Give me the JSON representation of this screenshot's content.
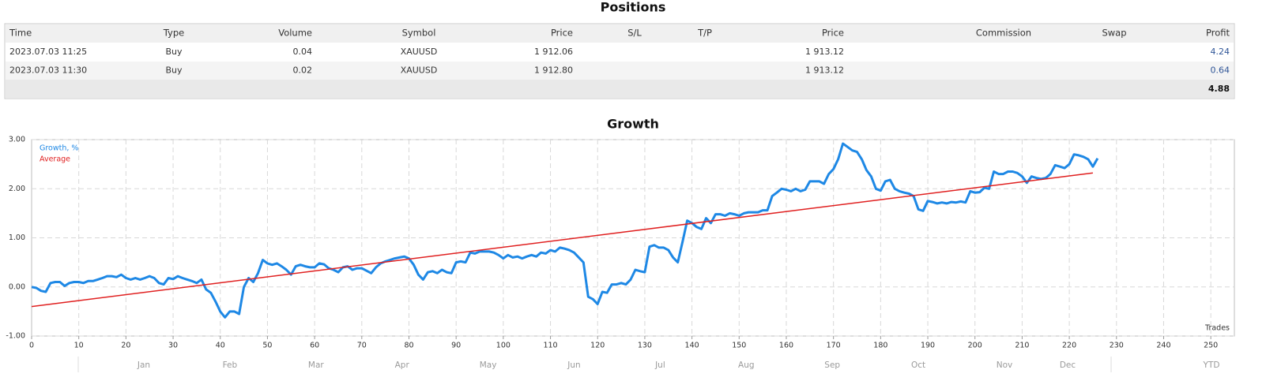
{
  "positions": {
    "title": "Positions",
    "columns": [
      "Time",
      "Type",
      "Volume",
      "Symbol",
      "Price",
      "S/L",
      "T/P",
      "Price",
      "Commission",
      "Swap",
      "Profit"
    ],
    "rows": [
      [
        "2023.07.03 11:25",
        "Buy",
        "0.04",
        "XAUUSD",
        "1 912.06",
        null,
        null,
        "1 913.12",
        null,
        null,
        "4.24"
      ],
      [
        "2023.07.03 11:30",
        "Buy",
        "0.02",
        "XAUUSD",
        "1 912.80",
        null,
        null,
        "1 913.12",
        null,
        null,
        "0.64"
      ]
    ],
    "total": "4.88"
  },
  "chart_data": {
    "type": "line",
    "title": "Growth",
    "xlabel": "Trades",
    "xlim": [
      0,
      255
    ],
    "xticks": [
      0,
      10,
      20,
      30,
      40,
      50,
      60,
      70,
      80,
      90,
      100,
      110,
      120,
      130,
      140,
      150,
      160,
      170,
      180,
      190,
      200,
      210,
      220,
      230,
      240,
      250
    ],
    "ylim": [
      -1,
      3
    ],
    "yticks": [
      {
        "value": -1,
        "label": "-1.00"
      },
      {
        "value": 0,
        "label": "0.00"
      },
      {
        "value": 1,
        "label": "1.00"
      },
      {
        "value": 2,
        "label": "2.00"
      },
      {
        "value": 3,
        "label": "3.00"
      }
    ],
    "grid": true,
    "legend": "upper-left",
    "period_labels": [
      "Jan",
      "Feb",
      "Mar",
      "Apr",
      "May",
      "Jun",
      "Jul",
      "Aug",
      "Sep",
      "Oct",
      "Nov",
      "Dec"
    ],
    "period_total": "YTD",
    "series": [
      {
        "name": "Growth, %",
        "color": "#1e88e5",
        "x": [
          0,
          1,
          2,
          3,
          4,
          5,
          6,
          7,
          8,
          9,
          10,
          11,
          12,
          13,
          14,
          15,
          16,
          17,
          18,
          19,
          20,
          21,
          22,
          23,
          24,
          25,
          26,
          27,
          28,
          29,
          30,
          31,
          32,
          33,
          34,
          35,
          36,
          37,
          38,
          39,
          40,
          41,
          42,
          43,
          44,
          45,
          46,
          47,
          48,
          49,
          50,
          51,
          52,
          53,
          54,
          55,
          56,
          57,
          58,
          59,
          60,
          61,
          62,
          63,
          64,
          65,
          66,
          67,
          68,
          69,
          70,
          71,
          72,
          73,
          74,
          75,
          76,
          77,
          78,
          79,
          80,
          81,
          82,
          83,
          84,
          85,
          86,
          87,
          88,
          89,
          90,
          91,
          92,
          93,
          94,
          95,
          96,
          97,
          98,
          99,
          100,
          101,
          102,
          103,
          104,
          105,
          106,
          107,
          108,
          109,
          110,
          111,
          112,
          113,
          114,
          115,
          116,
          117,
          118,
          119,
          120,
          121,
          122,
          123,
          124,
          125,
          126,
          127,
          128,
          129,
          130,
          131,
          132,
          133,
          134,
          135,
          136,
          137,
          138,
          139,
          140,
          141,
          142,
          143,
          144,
          145,
          146,
          147,
          148,
          149,
          150,
          151,
          152,
          153,
          154,
          155,
          156,
          157,
          158,
          159,
          160,
          161,
          162,
          163,
          164,
          165,
          166,
          167,
          168,
          169,
          170,
          171,
          172,
          173,
          174,
          175,
          176,
          177,
          178,
          179,
          180,
          181,
          182,
          183,
          184,
          185,
          186,
          187,
          188,
          189,
          190,
          191,
          192,
          193,
          194,
          195,
          196,
          197,
          198,
          199,
          200,
          201,
          202,
          203,
          204,
          205,
          206,
          207,
          208,
          209,
          210,
          211,
          212,
          213,
          214,
          215,
          216,
          217,
          218,
          219,
          220,
          221,
          222,
          223,
          224,
          225,
          226
        ],
        "values": [
          0.0,
          -0.02,
          -0.08,
          -0.1,
          0.08,
          0.1,
          0.1,
          0.02,
          0.08,
          0.1,
          0.1,
          0.08,
          0.12,
          0.12,
          0.15,
          0.18,
          0.22,
          0.22,
          0.2,
          0.25,
          0.18,
          0.15,
          0.18,
          0.15,
          0.18,
          0.22,
          0.18,
          0.08,
          0.05,
          0.18,
          0.16,
          0.22,
          0.18,
          0.15,
          0.12,
          0.08,
          0.15,
          -0.05,
          -0.12,
          -0.3,
          -0.5,
          -0.62,
          -0.5,
          -0.5,
          -0.55,
          0.0,
          0.18,
          0.1,
          0.28,
          0.55,
          0.48,
          0.45,
          0.48,
          0.42,
          0.35,
          0.25,
          0.42,
          0.45,
          0.42,
          0.4,
          0.4,
          0.48,
          0.46,
          0.38,
          0.35,
          0.3,
          0.4,
          0.42,
          0.35,
          0.38,
          0.38,
          0.33,
          0.28,
          0.4,
          0.48,
          0.52,
          0.55,
          0.58,
          0.6,
          0.62,
          0.58,
          0.45,
          0.25,
          0.15,
          0.3,
          0.32,
          0.28,
          0.35,
          0.3,
          0.28,
          0.5,
          0.52,
          0.5,
          0.7,
          0.68,
          0.72,
          0.72,
          0.72,
          0.7,
          0.65,
          0.58,
          0.65,
          0.6,
          0.62,
          0.58,
          0.62,
          0.65,
          0.62,
          0.7,
          0.68,
          0.75,
          0.72,
          0.8,
          0.78,
          0.75,
          0.7,
          0.6,
          0.5,
          -0.2,
          -0.25,
          -0.35,
          -0.1,
          -0.12,
          0.05,
          0.05,
          0.08,
          0.05,
          0.15,
          0.35,
          0.32,
          0.3,
          0.82,
          0.85,
          0.8,
          0.8,
          0.75,
          0.6,
          0.5,
          0.92,
          1.35,
          1.3,
          1.22,
          1.18,
          1.4,
          1.3,
          1.48,
          1.48,
          1.45,
          1.5,
          1.48,
          1.45,
          1.5,
          1.52,
          1.52,
          1.52,
          1.56,
          1.56,
          1.85,
          1.92,
          2.0,
          1.98,
          1.95,
          2.0,
          1.95,
          1.98,
          2.15,
          2.15,
          2.15,
          2.1,
          2.3,
          2.4,
          2.6,
          2.92,
          2.85,
          2.78,
          2.75,
          2.6,
          2.38,
          2.25,
          2.0,
          1.96,
          2.15,
          2.18,
          2.0,
          1.95,
          1.92,
          1.9,
          1.85,
          1.58,
          1.55,
          1.75,
          1.73,
          1.7,
          1.72,
          1.7,
          1.73,
          1.72,
          1.74,
          1.72,
          1.95,
          1.92,
          1.93,
          2.02,
          2.0,
          2.35,
          2.3,
          2.3,
          2.35,
          2.35,
          2.32,
          2.25,
          2.12,
          2.25,
          2.22,
          2.2,
          2.22,
          2.3,
          2.48,
          2.45,
          2.42,
          2.5,
          2.7,
          2.68,
          2.65,
          2.6,
          2.45,
          2.62
        ]
      },
      {
        "name": "Average",
        "color": "#e02020",
        "x": [
          0,
          225
        ],
        "values": [
          -0.4,
          2.32
        ]
      }
    ]
  }
}
